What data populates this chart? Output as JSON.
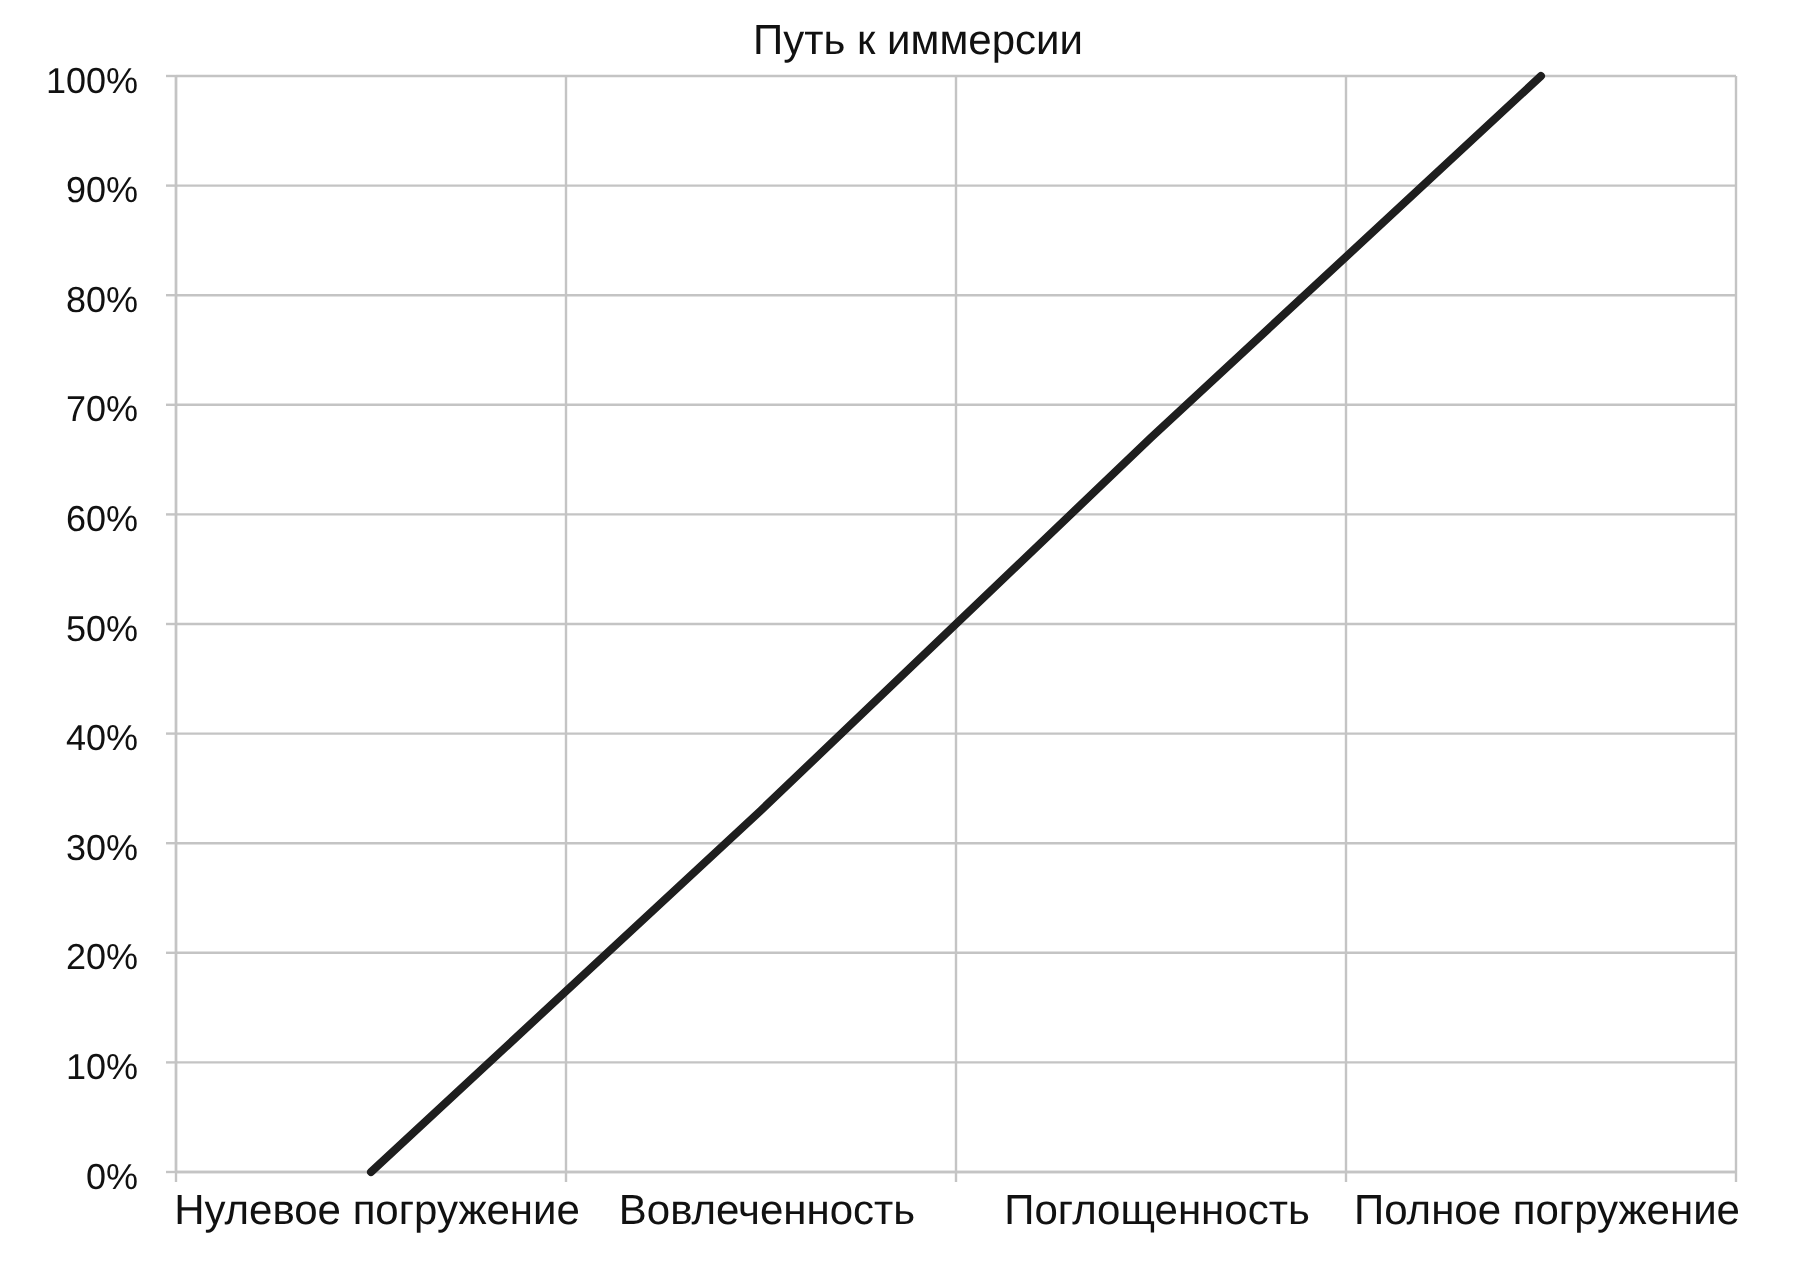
{
  "chart_data": {
    "type": "line",
    "title": "Путь к иммерсии",
    "categories": [
      "Нулевое погружение",
      "Вовлеченность",
      "Поглощенность",
      "Полное погружение"
    ],
    "series": [
      {
        "color": "#1e1e1e",
        "values": [
          0,
          33,
          67,
          100
        ]
      }
    ],
    "ylim": [
      0,
      100
    ],
    "yticks": [
      {
        "value": 0,
        "label": "0%"
      },
      {
        "value": 10,
        "label": "10%"
      },
      {
        "value": 20,
        "label": "20%"
      },
      {
        "value": 30,
        "label": "30%"
      },
      {
        "value": 40,
        "label": "40%"
      },
      {
        "value": 50,
        "label": "50%"
      },
      {
        "value": 60,
        "label": "60%"
      },
      {
        "value": 70,
        "label": "70%"
      },
      {
        "value": 80,
        "label": "80%"
      },
      {
        "value": 90,
        "label": "90%"
      },
      {
        "value": 100,
        "label": "100%"
      }
    ],
    "grid": true
  }
}
